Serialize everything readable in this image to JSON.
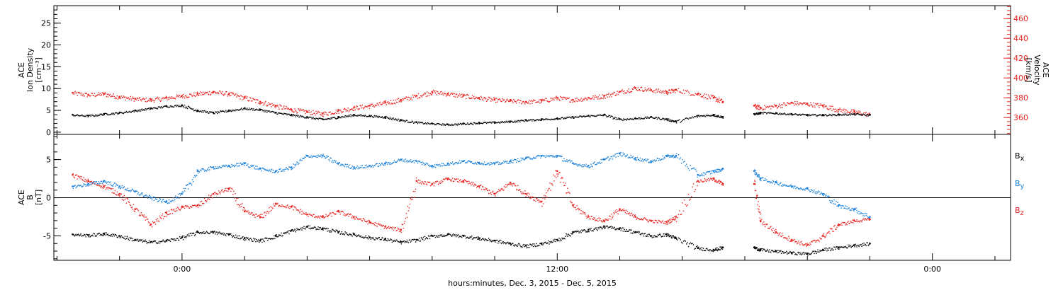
{
  "xaxis": {
    "title": "hours:minutes, Dec.  3, 2015 - Dec.  5, 2015",
    "tick_labels": [
      {
        "t": 0,
        "label": "0:00"
      },
      {
        "t": 12,
        "label": "12:00"
      },
      {
        "t": 24,
        "label": "0:00"
      }
    ],
    "range_hours": [
      -4.1,
      26.5
    ]
  },
  "colors": {
    "black": "#000000",
    "red": "#e8231f",
    "blue": "#1a80d9"
  },
  "chart_data": [
    {
      "type": "scatter",
      "panel": "top",
      "left_axis": {
        "label_lines": [
          "ACE",
          "Ion Density",
          "[cm⁻³]"
        ],
        "ticks": [
          "0",
          "5",
          "10",
          "15",
          "20",
          "25"
        ],
        "range": [
          -0.5,
          29
        ]
      },
      "right_axis": {
        "label_lines": [
          "ACE",
          "Velocity",
          "[km/s]"
        ],
        "ticks": [
          "360",
          "380",
          "400",
          "420",
          "440",
          "460"
        ],
        "range": [
          343,
          473
        ]
      },
      "series": [
        {
          "name": "Ion Density",
          "color": "#000000",
          "axis": "left",
          "x": [
            -3.5,
            -3,
            -2.5,
            -2,
            -1.5,
            -1,
            -0.5,
            0,
            0.5,
            1,
            1.5,
            2,
            2.5,
            3,
            3.5,
            4,
            4.5,
            5,
            5.5,
            6,
            6.5,
            7,
            7.5,
            8,
            8.5,
            9,
            9.5,
            10,
            10.5,
            11,
            11.5,
            12,
            12.5,
            13,
            13.5,
            14,
            14.5,
            15,
            15.5,
            15.8,
            16.5,
            17,
            17.3,
            18.3,
            18.5,
            19,
            19.5,
            20,
            20.5,
            21,
            21.5,
            22
          ],
          "y": [
            4,
            3.8,
            4.2,
            4.5,
            5,
            5.5,
            6,
            6.2,
            5,
            4.5,
            5,
            5.5,
            5.2,
            4.5,
            4,
            3.5,
            3,
            3.5,
            4,
            3.8,
            3.5,
            2.8,
            2.3,
            2,
            1.8,
            2,
            2.2,
            2.3,
            2.5,
            2.8,
            3,
            3.2,
            3.5,
            3.8,
            4,
            3,
            3.2,
            3.5,
            3,
            2.5,
            3.8,
            4,
            3.5,
            4.2,
            4.5,
            4.4,
            4.2,
            4,
            4,
            4.1,
            4.2,
            4
          ]
        },
        {
          "name": "Velocity",
          "color": "#e8231f",
          "axis": "right",
          "x": [
            -3.5,
            -3,
            -2.5,
            -2,
            -1.5,
            -1,
            -0.5,
            0,
            0.5,
            1,
            1.5,
            2,
            2.5,
            3,
            3.5,
            4,
            4.5,
            5,
            5.5,
            6,
            6.5,
            7,
            7.5,
            8,
            8.5,
            9,
            9.5,
            10,
            10.5,
            11,
            11.5,
            12,
            12.5,
            13,
            13.5,
            14,
            14.5,
            15,
            15.5,
            15.8,
            16.5,
            17,
            17.3,
            18.3,
            18.5,
            19,
            19.5,
            20,
            20.5,
            21,
            21.5,
            22
          ],
          "y": [
            385,
            383,
            384,
            381,
            379,
            378,
            380,
            382,
            384,
            386,
            384,
            380,
            376,
            372,
            368,
            366,
            364,
            367,
            370,
            372,
            375,
            378,
            382,
            386,
            384,
            382,
            380,
            378,
            377,
            376,
            377,
            380,
            378,
            380,
            382,
            386,
            390,
            388,
            386,
            388,
            384,
            380,
            376,
            372,
            370,
            372,
            375,
            374,
            372,
            368,
            366,
            363
          ]
        }
      ]
    },
    {
      "type": "scatter",
      "panel": "bottom",
      "left_axis": {
        "label_lines": [
          "ACE",
          "B",
          "[nT]"
        ],
        "ticks": [
          "-5",
          "0",
          "5"
        ],
        "range": [
          -8.2,
          8.3
        ]
      },
      "series": [
        {
          "name": "Bx",
          "color": "#000000",
          "x": [
            -3.5,
            -3,
            -2.5,
            -2,
            -1.5,
            -1,
            -0.5,
            0,
            0.5,
            1,
            1.5,
            2,
            2.5,
            3,
            3.5,
            4,
            4.5,
            5,
            5.5,
            6,
            6.5,
            7,
            7.5,
            8,
            8.5,
            9,
            9.5,
            10,
            10.5,
            11,
            11.5,
            12,
            12.5,
            13,
            13.5,
            14,
            14.5,
            15,
            15.5,
            15.8,
            16.5,
            17,
            17.3,
            18.3,
            18.5,
            19,
            19.5,
            20,
            20.5,
            21,
            21.5,
            22
          ],
          "y": [
            -4.8,
            -4.9,
            -4.7,
            -5,
            -5.5,
            -5.8,
            -5.6,
            -5.2,
            -4.5,
            -4.5,
            -4.8,
            -5.3,
            -5.6,
            -5,
            -4.3,
            -3.8,
            -4,
            -4.5,
            -4.8,
            -5.2,
            -5.4,
            -5.8,
            -5.5,
            -5,
            -4.8,
            -5,
            -5.3,
            -5.6,
            -6,
            -6.3,
            -6,
            -5.5,
            -4.5,
            -4.2,
            -3.8,
            -4,
            -4.5,
            -5,
            -4.8,
            -5.3,
            -6.6,
            -6.8,
            -6.5,
            -6.5,
            -6.8,
            -7,
            -7.2,
            -7.3,
            -6.8,
            -6.5,
            -6.2,
            -6
          ]
        },
        {
          "name": "By",
          "color": "#1a80d9",
          "x": [
            -3.5,
            -3,
            -2.5,
            -2,
            -1.5,
            -1,
            -0.5,
            0,
            0.5,
            1,
            1.5,
            2,
            2.5,
            3,
            3.5,
            4,
            4.5,
            5,
            5.5,
            6,
            6.5,
            7,
            7.5,
            8,
            8.5,
            9,
            9.5,
            10,
            10.5,
            11,
            11.5,
            12,
            12.5,
            13,
            13.5,
            14,
            14.5,
            15,
            15.5,
            15.8,
            16.5,
            17,
            17.3,
            18.3,
            18.5,
            19,
            19.5,
            20,
            20.5,
            21,
            21.5,
            22
          ],
          "y": [
            1.5,
            1.8,
            2.2,
            1.5,
            0.8,
            0,
            -0.5,
            0.5,
            3.5,
            4,
            4.2,
            4.5,
            3.8,
            3.5,
            4,
            5.5,
            5.5,
            4.5,
            4,
            4.2,
            4.5,
            5,
            4.8,
            4.2,
            4.5,
            4.8,
            4.6,
            4.5,
            4.8,
            5.2,
            5.5,
            5.5,
            4.5,
            4.2,
            5,
            5.8,
            5.2,
            4.8,
            5.5,
            5.5,
            3,
            3.5,
            3.8,
            3.5,
            2.5,
            2,
            1.5,
            1.2,
            0.5,
            -1,
            -1.5,
            -2.5
          ]
        },
        {
          "name": "Bz",
          "color": "#e8231f",
          "x": [
            -3.5,
            -3,
            -2.5,
            -2,
            -1.5,
            -1,
            -0.5,
            0,
            0.5,
            1,
            1.5,
            2,
            2.5,
            3,
            3.5,
            4,
            4.5,
            5,
            5.5,
            6,
            6.5,
            7,
            7.5,
            8,
            8.5,
            9,
            9.5,
            10,
            10.5,
            11,
            11.5,
            12,
            12.5,
            13,
            13.5,
            14,
            14.5,
            15,
            15.5,
            15.8,
            16.5,
            17,
            17.3,
            18.3,
            18.5,
            19,
            19.5,
            20,
            20.5,
            21,
            21.5,
            22
          ],
          "y": [
            3,
            2.2,
            1.5,
            0.5,
            -1.5,
            -3.5,
            -2,
            -1.2,
            -1,
            0.5,
            1.2,
            -1.8,
            -2.5,
            -0.8,
            -1.2,
            -2.2,
            -2.5,
            -1.8,
            -2.5,
            -3.2,
            -3.8,
            -4.2,
            2.2,
            1.8,
            2.5,
            2.2,
            1.5,
            0.5,
            2,
            0.5,
            -0.5,
            3.5,
            -1,
            -2.5,
            -3,
            -1.5,
            -2.5,
            -3,
            -3.2,
            -2.5,
            2.2,
            2.5,
            1.8,
            1.8,
            -3,
            -4.5,
            -5.5,
            -6.2,
            -5,
            -3.5,
            -3,
            -2.8
          ]
        }
      ],
      "legend": [
        {
          "base": "B",
          "sub": "x",
          "color": "#000000"
        },
        {
          "base": "B",
          "sub": "y",
          "color": "#1a80d9"
        },
        {
          "base": "B",
          "sub": "z",
          "color": "#e8231f"
        }
      ],
      "zero_line": true
    }
  ]
}
